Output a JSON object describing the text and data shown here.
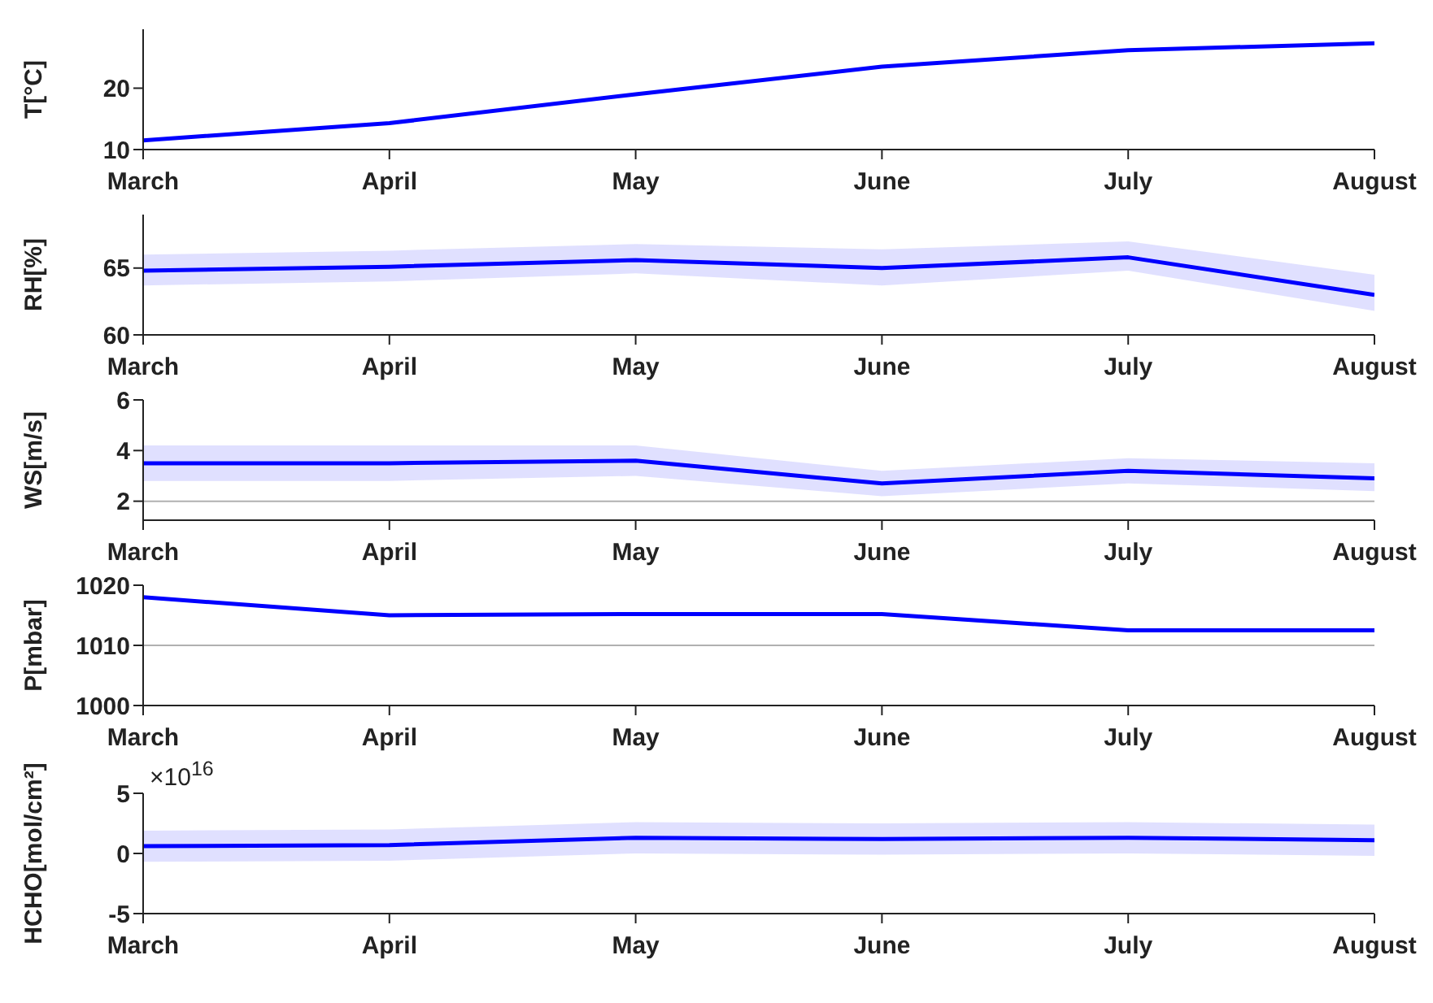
{
  "chart_data": [
    {
      "type": "line",
      "ylabel": "T[°C]",
      "categories": [
        "March",
        "April",
        "May",
        "June",
        "July",
        "August"
      ],
      "ylim": [
        10,
        29.6
      ],
      "yticks": [
        10,
        20
      ],
      "series": [
        {
          "color": "#0000ff",
          "values": [
            11.5,
            14.3,
            19,
            23.5,
            26.2,
            27.3
          ]
        }
      ]
    },
    {
      "type": "line",
      "ylabel": "RH[%]",
      "categories": [
        "March",
        "April",
        "May",
        "June",
        "July",
        "August"
      ],
      "ylim": [
        60,
        69
      ],
      "yticks": [
        60,
        65
      ],
      "series": [
        {
          "color": "#0000ff",
          "values": [
            64.8,
            65.1,
            65.6,
            65.0,
            65.8,
            63.0
          ],
          "lower": [
            63.7,
            64.0,
            64.6,
            63.7,
            64.8,
            61.8
          ],
          "upper": [
            66.0,
            66.3,
            66.8,
            66.4,
            67.0,
            64.5
          ]
        }
      ]
    },
    {
      "type": "line",
      "ylabel": "WS[m/s]",
      "categories": [
        "March",
        "April",
        "May",
        "June",
        "July",
        "August"
      ],
      "ylim": [
        1.25,
        6
      ],
      "yticks": [
        2,
        4,
        6
      ],
      "ref_lines": [
        {
          "axis": "y",
          "value": 2,
          "color": "#b0b0b0"
        }
      ],
      "series": [
        {
          "color": "#0000ff",
          "values": [
            3.5,
            3.5,
            3.6,
            2.7,
            3.2,
            2.9
          ],
          "lower": [
            2.8,
            2.8,
            3.0,
            2.2,
            2.7,
            2.4
          ],
          "upper": [
            4.2,
            4.2,
            4.2,
            3.2,
            3.7,
            3.5
          ]
        }
      ]
    },
    {
      "type": "line",
      "ylabel": "P[mbar]",
      "categories": [
        "March",
        "April",
        "May",
        "June",
        "July",
        "August"
      ],
      "ylim": [
        1000,
        1020
      ],
      "yticks": [
        1000,
        1010,
        1020
      ],
      "ref_lines": [
        {
          "axis": "y",
          "value": 1010,
          "color": "#b0b0b0"
        }
      ],
      "series": [
        {
          "color": "#0000ff",
          "values": [
            1018,
            1015,
            1015.2,
            1015.2,
            1012.5,
            1012.5
          ]
        }
      ]
    },
    {
      "type": "line",
      "ylabel": "HCHO[mol/cm²]",
      "annotations": [
        "×10$^{16}$"
      ],
      "categories": [
        "March",
        "April",
        "May",
        "June",
        "July",
        "August"
      ],
      "ylim": [
        -5,
        5
      ],
      "yticks": [
        -5,
        0,
        5
      ],
      "series": [
        {
          "color": "#0000ff",
          "values": [
            0.6,
            0.7,
            1.3,
            1.2,
            1.3,
            1.1
          ],
          "lower": [
            -0.7,
            -0.6,
            0,
            -0.1,
            0,
            -0.2
          ],
          "upper": [
            1.9,
            2.0,
            2.6,
            2.5,
            2.6,
            2.4
          ]
        }
      ]
    }
  ]
}
